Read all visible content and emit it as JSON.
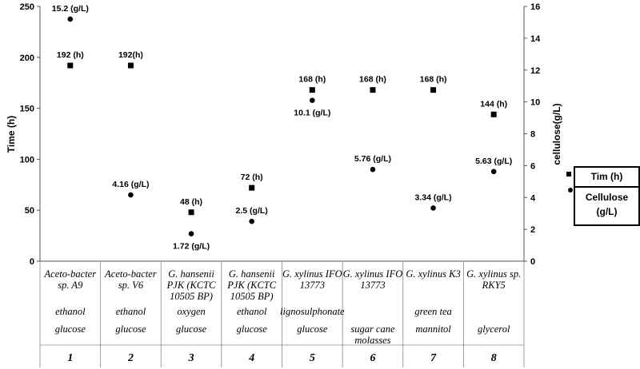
{
  "chart_data": {
    "type": "scatter",
    "y_left": {
      "label": "Time (h)",
      "lim": [
        0,
        250
      ],
      "ticks": [
        0,
        50,
        100,
        150,
        200,
        250
      ]
    },
    "y_right": {
      "label": "cellulose(g/L)",
      "lim": [
        0,
        16
      ],
      "ticks": [
        0,
        2,
        4,
        6,
        8,
        10,
        12,
        14,
        16
      ]
    },
    "categories": [
      {
        "number": "1",
        "strain": [
          "Aceto-bacter",
          "sp. A9"
        ],
        "row2": [
          "ethanol"
        ],
        "row3": [
          "glucose"
        ]
      },
      {
        "number": "2",
        "strain": [
          "Aceto-bacter",
          "sp. V6"
        ],
        "row2": [
          "ethanol"
        ],
        "row3": [
          "glucose"
        ]
      },
      {
        "number": "3",
        "strain": [
          "G. hansenii",
          "PJK (KCTC",
          "10505 BP)"
        ],
        "row2": [
          "oxygen"
        ],
        "row3": [
          "glucose"
        ]
      },
      {
        "number": "4",
        "strain": [
          "G. hansenii",
          "PJK (KCTC",
          "10505 BP)"
        ],
        "row2": [
          "ethanol"
        ],
        "row3": [
          "glucose"
        ]
      },
      {
        "number": "5",
        "strain": [
          "G. xylinus IFO",
          "13773"
        ],
        "row2": [
          "lignosulphonate"
        ],
        "row3": [
          "glucose"
        ]
      },
      {
        "number": "6",
        "strain": [
          "G. xylinus IFO",
          "13773"
        ],
        "row2": [],
        "row3": [
          "sugar cane",
          "molasses"
        ]
      },
      {
        "number": "7",
        "strain": [
          "G. xylinus K3"
        ],
        "row2": [
          "green tea"
        ],
        "row3": [
          "mannitol"
        ]
      },
      {
        "number": "8",
        "strain": [
          "G. xylinus sp.",
          "RKY5"
        ],
        "row2": [],
        "row3": [
          "glycerol"
        ]
      }
    ],
    "series": [
      {
        "name": "Tim (h)",
        "marker": "square",
        "axis": "left",
        "values": [
          192,
          192,
          48,
          72,
          168,
          168,
          168,
          144
        ],
        "labels": [
          "192 (h)",
          "192(h)",
          "48 (h)",
          "72 (h)",
          "168  (h)",
          "168 (h)",
          "168 (h)",
          "144 (h)"
        ]
      },
      {
        "name": "Cellulose (g/L)",
        "marker": "circle",
        "axis": "right",
        "values": [
          15.2,
          4.16,
          1.72,
          2.5,
          10.1,
          5.76,
          3.34,
          5.63
        ],
        "labels": [
          "15.2 (g/L)",
          "4.16 (g/L)",
          "1.72 (g/L)",
          "2.5 (g/L)",
          "10.1 (g/L)",
          "5.76 (g/L)",
          "3.34 (g/L)",
          "5.63 (g/L)"
        ]
      }
    ],
    "legend": {
      "placement": "right",
      "entries": [
        {
          "marker": "square",
          "text": [
            "Tim (h)"
          ]
        },
        {
          "marker": "circle",
          "text": [
            "Cellulose",
            "(g/L)"
          ]
        }
      ]
    }
  },
  "colors": {
    "marker": "#000000",
    "axis": "#555555",
    "grid": "#888888"
  }
}
